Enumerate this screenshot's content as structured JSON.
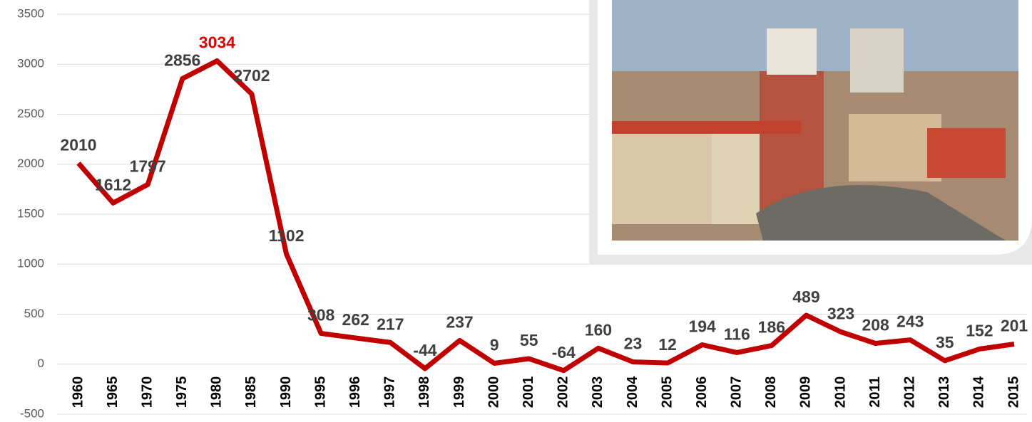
{
  "chart_data": {
    "type": "line",
    "categories": [
      "1960",
      "1965",
      "1970",
      "1975",
      "1980",
      "1985",
      "1990",
      "1995",
      "1996",
      "1997",
      "1998",
      "1999",
      "2000",
      "2001",
      "2002",
      "2003",
      "2004",
      "2005",
      "2006",
      "2007",
      "2008",
      "2009",
      "2010",
      "2011",
      "2012",
      "2013",
      "2014",
      "2015"
    ],
    "values": [
      2010,
      1612,
      1797,
      2856,
      3034,
      2702,
      1102,
      308,
      262,
      217,
      -44,
      237,
      9,
      55,
      -64,
      160,
      23,
      12,
      194,
      116,
      186,
      489,
      323,
      208,
      243,
      35,
      152,
      201
    ],
    "color": "#c00000",
    "label_color": "#404040",
    "highlight": {
      "category": "1980",
      "color": "#e00000"
    },
    "ylim": [
      -500,
      3500
    ],
    "yticks": [
      -500,
      0,
      500,
      1000,
      1500,
      2000,
      2500,
      3000,
      3500
    ],
    "grid": true
  }
}
